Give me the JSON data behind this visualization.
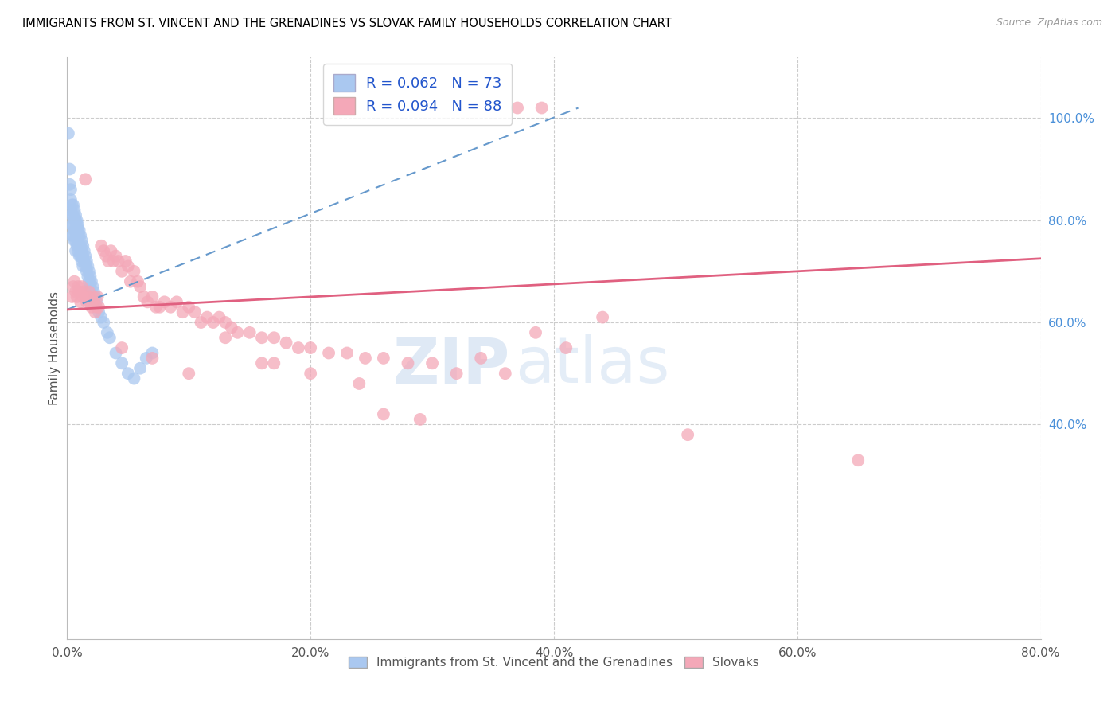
{
  "title": "IMMIGRANTS FROM ST. VINCENT AND THE GRENADINES VS SLOVAK FAMILY HOUSEHOLDS CORRELATION CHART",
  "source": "Source: ZipAtlas.com",
  "ylabel": "Family Households",
  "blue_R": "0.062",
  "blue_N": "73",
  "pink_R": "0.094",
  "pink_N": "88",
  "blue_color": "#aac8f0",
  "pink_color": "#f4a8b8",
  "blue_line_color": "#6699cc",
  "pink_line_color": "#e06080",
  "watermark_zip": "ZIP",
  "watermark_atlas": "atlas",
  "legend_labels": [
    "Immigrants from St. Vincent and the Grenadines",
    "Slovaks"
  ],
  "xlim": [
    0.0,
    0.8
  ],
  "ylim": [
    -0.02,
    1.12
  ],
  "xticks": [
    0.0,
    0.2,
    0.4,
    0.6,
    0.8
  ],
  "yticks_right": [
    1.0,
    0.8,
    0.6,
    0.4
  ],
  "ytick_labels_right": [
    "100.0%",
    "80.0%",
    "60.0%",
    "40.0%"
  ],
  "xtick_labels": [
    "0.0%",
    "20.0%",
    "40.0%",
    "60.0%",
    "80.0%"
  ],
  "blue_scatter_x": [
    0.001,
    0.002,
    0.002,
    0.003,
    0.003,
    0.003,
    0.004,
    0.004,
    0.004,
    0.004,
    0.005,
    0.005,
    0.005,
    0.005,
    0.006,
    0.006,
    0.006,
    0.006,
    0.007,
    0.007,
    0.007,
    0.007,
    0.007,
    0.008,
    0.008,
    0.008,
    0.008,
    0.009,
    0.009,
    0.009,
    0.009,
    0.01,
    0.01,
    0.01,
    0.01,
    0.011,
    0.011,
    0.011,
    0.012,
    0.012,
    0.012,
    0.013,
    0.013,
    0.013,
    0.014,
    0.014,
    0.015,
    0.015,
    0.016,
    0.016,
    0.017,
    0.017,
    0.018,
    0.018,
    0.019,
    0.019,
    0.02,
    0.021,
    0.022,
    0.023,
    0.024,
    0.026,
    0.028,
    0.03,
    0.033,
    0.035,
    0.04,
    0.045,
    0.05,
    0.055,
    0.06,
    0.065,
    0.07
  ],
  "blue_scatter_y": [
    0.97,
    0.9,
    0.87,
    0.86,
    0.84,
    0.82,
    0.83,
    0.81,
    0.79,
    0.77,
    0.83,
    0.81,
    0.79,
    0.77,
    0.82,
    0.8,
    0.78,
    0.76,
    0.81,
    0.8,
    0.78,
    0.76,
    0.74,
    0.8,
    0.79,
    0.77,
    0.75,
    0.79,
    0.78,
    0.76,
    0.74,
    0.78,
    0.77,
    0.75,
    0.73,
    0.77,
    0.75,
    0.73,
    0.76,
    0.74,
    0.72,
    0.75,
    0.73,
    0.71,
    0.74,
    0.72,
    0.73,
    0.71,
    0.72,
    0.7,
    0.71,
    0.69,
    0.7,
    0.68,
    0.69,
    0.67,
    0.68,
    0.67,
    0.66,
    0.65,
    0.64,
    0.62,
    0.61,
    0.6,
    0.58,
    0.57,
    0.54,
    0.52,
    0.5,
    0.49,
    0.51,
    0.53,
    0.54
  ],
  "pink_scatter_x": [
    0.004,
    0.005,
    0.006,
    0.007,
    0.008,
    0.009,
    0.01,
    0.011,
    0.012,
    0.013,
    0.014,
    0.015,
    0.016,
    0.017,
    0.018,
    0.019,
    0.02,
    0.021,
    0.022,
    0.023,
    0.024,
    0.025,
    0.026,
    0.028,
    0.03,
    0.032,
    0.034,
    0.036,
    0.038,
    0.04,
    0.042,
    0.045,
    0.048,
    0.05,
    0.052,
    0.055,
    0.058,
    0.06,
    0.063,
    0.066,
    0.07,
    0.073,
    0.076,
    0.08,
    0.085,
    0.09,
    0.095,
    0.1,
    0.105,
    0.11,
    0.115,
    0.12,
    0.125,
    0.13,
    0.135,
    0.14,
    0.15,
    0.16,
    0.17,
    0.18,
    0.19,
    0.2,
    0.215,
    0.23,
    0.245,
    0.26,
    0.28,
    0.3,
    0.32,
    0.34,
    0.36,
    0.385,
    0.41,
    0.16,
    0.2,
    0.24,
    0.29,
    0.44,
    0.51,
    0.65,
    0.045,
    0.07,
    0.1,
    0.13,
    0.17,
    0.26,
    0.37,
    0.39
  ],
  "pink_scatter_y": [
    0.65,
    0.67,
    0.68,
    0.66,
    0.65,
    0.67,
    0.66,
    0.64,
    0.67,
    0.65,
    0.66,
    0.88,
    0.64,
    0.65,
    0.66,
    0.64,
    0.63,
    0.65,
    0.64,
    0.62,
    0.63,
    0.65,
    0.63,
    0.75,
    0.74,
    0.73,
    0.72,
    0.74,
    0.72,
    0.73,
    0.72,
    0.7,
    0.72,
    0.71,
    0.68,
    0.7,
    0.68,
    0.67,
    0.65,
    0.64,
    0.65,
    0.63,
    0.63,
    0.64,
    0.63,
    0.64,
    0.62,
    0.63,
    0.62,
    0.6,
    0.61,
    0.6,
    0.61,
    0.6,
    0.59,
    0.58,
    0.58,
    0.57,
    0.57,
    0.56,
    0.55,
    0.55,
    0.54,
    0.54,
    0.53,
    0.53,
    0.52,
    0.52,
    0.5,
    0.53,
    0.5,
    0.58,
    0.55,
    0.52,
    0.5,
    0.48,
    0.41,
    0.61,
    0.38,
    0.33,
    0.55,
    0.53,
    0.5,
    0.57,
    0.52,
    0.42,
    1.02,
    1.02
  ]
}
